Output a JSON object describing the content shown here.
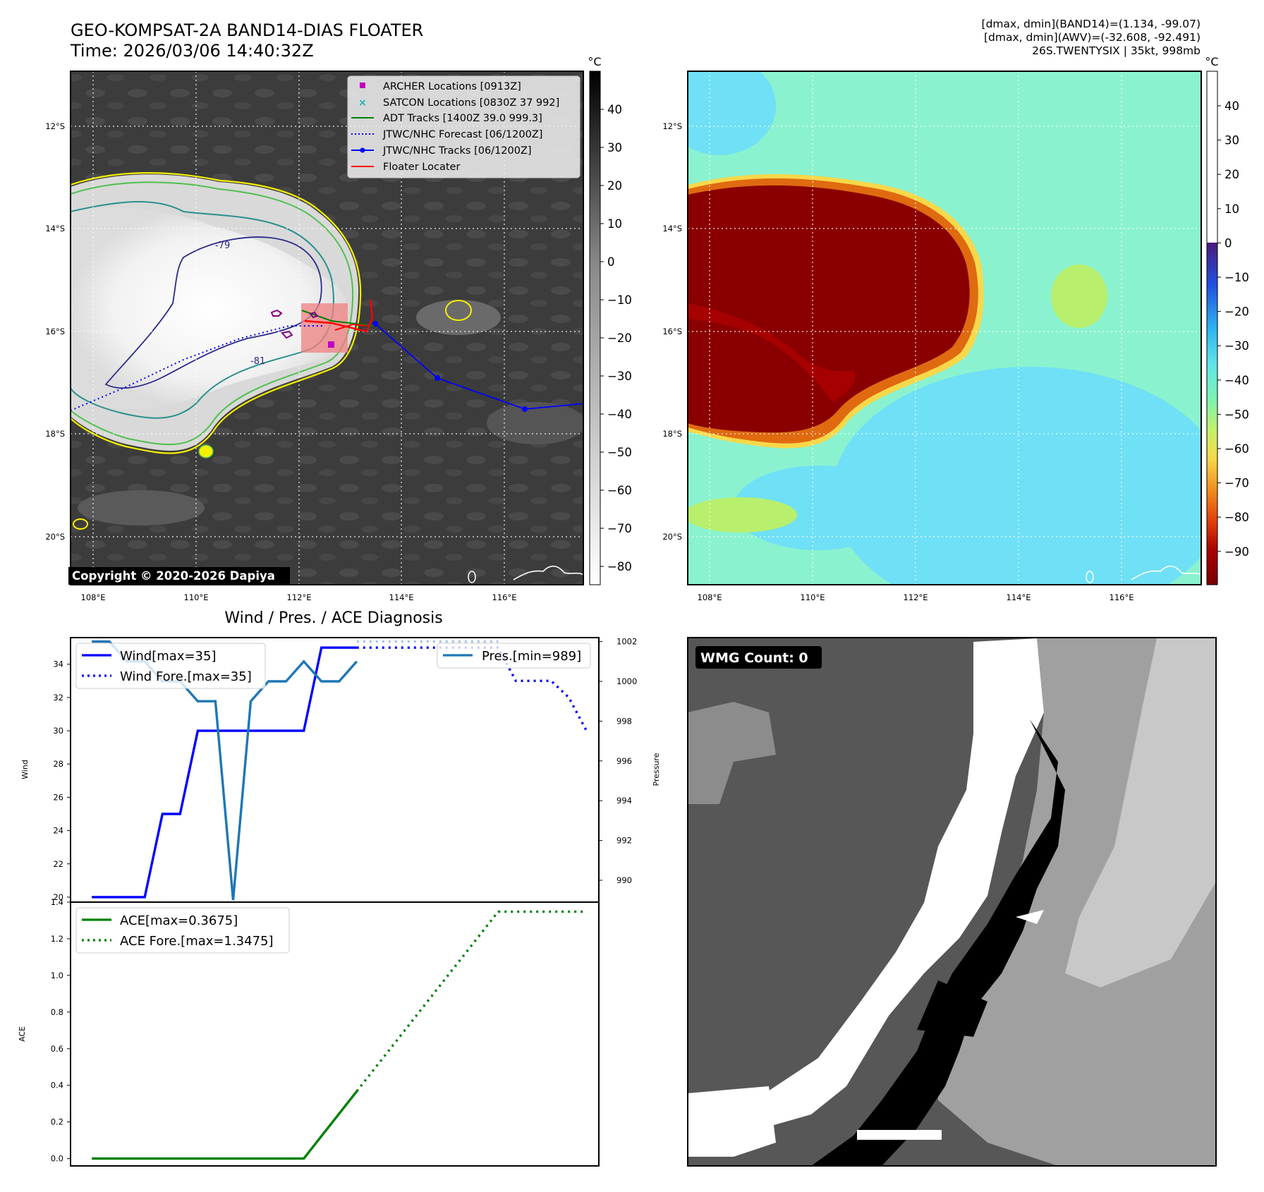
{
  "title": {
    "line1": "GEO-KOMPSAT-2A BAND14-DIAS FLOATER",
    "line2": "Time: 2026/03/06 14:40:32Z"
  },
  "info": {
    "line1": "[dmax, dmin](BAND14)=(1.134, -99.07)",
    "line2": "[dmax, dmin](AWV)=(-32.608, -92.491)",
    "line3": "26S.TWENTYSIX | 35kt, 998mb"
  },
  "colors": {
    "wind": "#0000ff",
    "pres": "#1f77b4",
    "ace": "#008000",
    "archer": "#c000c0",
    "satcon": "#20b0b0",
    "adt": "#008000",
    "floater": "#ff0000"
  },
  "map": {
    "unit": "°C",
    "lat_labels": [
      "12°S",
      "14°S",
      "16°S",
      "18°S",
      "20°S"
    ],
    "lon_labels": [
      "108°E",
      "110°E",
      "112°E",
      "114°E",
      "116°E"
    ],
    "copyright": "Copyright © 2020-2026 Dapiya",
    "contour_labels": [
      "-79",
      "-81"
    ],
    "legend": [
      {
        "label": "ARCHER Locations [0913Z]",
        "icon": "square-marker"
      },
      {
        "label": "SATCON Locations [0830Z 37 992]",
        "icon": "x-marker"
      },
      {
        "label": "ADT Tracks [1400Z 39.0 999.3]",
        "icon": "solid-line"
      },
      {
        "label": "JTWC/NHC Forecast [06/1200Z]",
        "icon": "dotted-line"
      },
      {
        "label": "JTWC/NHC Tracks [06/1200Z]",
        "icon": "line-with-dots"
      },
      {
        "label": "Floater Locater",
        "icon": "solid-line"
      }
    ],
    "ir_colorbar_ticks": [
      "40",
      "30",
      "20",
      "10",
      "0",
      "−10",
      "−20",
      "−30",
      "−40",
      "−50",
      "−60",
      "−70",
      "−80"
    ],
    "awv_colorbar_ticks": [
      "40",
      "30",
      "20",
      "10",
      "0",
      "−10",
      "−20",
      "−30",
      "−40",
      "−50",
      "−60",
      "−70",
      "−80",
      "−90"
    ]
  },
  "diag": {
    "title": "Wind / Pres. / ACE Diagnosis",
    "wmg": "WMG Count: 0"
  },
  "chart_data": [
    {
      "type": "line",
      "title": "Wind / Pres. / ACE Diagnosis",
      "ylabel": "Wind",
      "ylabel2": "Pressure",
      "ylim": [
        19.7,
        35.6
      ],
      "y2lim": [
        988.9,
        1002.2
      ],
      "yticks": [
        20,
        22,
        24,
        26,
        28,
        30,
        32,
        34
      ],
      "y2ticks": [
        990,
        992,
        994,
        996,
        998,
        1000,
        1002
      ],
      "legend": [
        "Wind[max=35]",
        "Wind Fore.[max=35]",
        "Pres.[min=989]"
      ],
      "series": [
        {
          "name": "Wind[max=35]",
          "style": "solid",
          "color": "#0000ff",
          "axis": "left",
          "x": [
            0,
            3,
            4,
            5,
            6,
            12,
            13,
            15
          ],
          "values": [
            20,
            20,
            25,
            25,
            30,
            30,
            35,
            35
          ]
        },
        {
          "name": "Wind Fore.[max=35]",
          "style": "dotted",
          "color": "#0000ff",
          "axis": "left",
          "x": [
            15,
            23,
            24,
            26,
            27,
            28
          ],
          "values": [
            35,
            35,
            33,
            33,
            32,
            30
          ]
        },
        {
          "name": "Pres.[min=989]",
          "style": "solid",
          "color": "#1f77b4",
          "axis": "right",
          "x": [
            0,
            1,
            2,
            3,
            4,
            5,
            6,
            7,
            8,
            9,
            10,
            11,
            12,
            13,
            14,
            15
          ],
          "values": [
            1002,
            1002,
            1001,
            1001,
            1000,
            1000,
            999,
            999,
            989,
            999,
            1000,
            1000,
            1001,
            1000,
            1000,
            1001
          ]
        },
        {
          "name": "Pres. Fore.",
          "style": "dotted",
          "color": "#1f77b4",
          "axis": "right",
          "x": [
            15,
            23
          ],
          "values": [
            1002,
            1002
          ]
        }
      ],
      "xlim": [
        -1.2,
        28.7
      ]
    },
    {
      "type": "line",
      "ylabel": "ACE",
      "ylim": [
        -0.04,
        1.4
      ],
      "yticks": [
        "0.0",
        "0.2",
        "0.4",
        "0.6",
        "0.8",
        "1.0",
        "1.2",
        "1.4"
      ],
      "legend": [
        "ACE[max=0.3675]",
        "ACE Fore.[max=1.3475]"
      ],
      "series": [
        {
          "name": "ACE[max=0.3675]",
          "style": "solid",
          "color": "#008000",
          "x": [
            0,
            12,
            15
          ],
          "values": [
            0,
            0,
            0.3675
          ]
        },
        {
          "name": "ACE Fore.[max=1.3475]",
          "style": "dotted",
          "color": "#008000",
          "x": [
            15,
            23,
            28
          ],
          "values": [
            0.3675,
            1.3475,
            1.3475
          ]
        }
      ],
      "xlim": [
        -1.2,
        28.7
      ]
    }
  ]
}
